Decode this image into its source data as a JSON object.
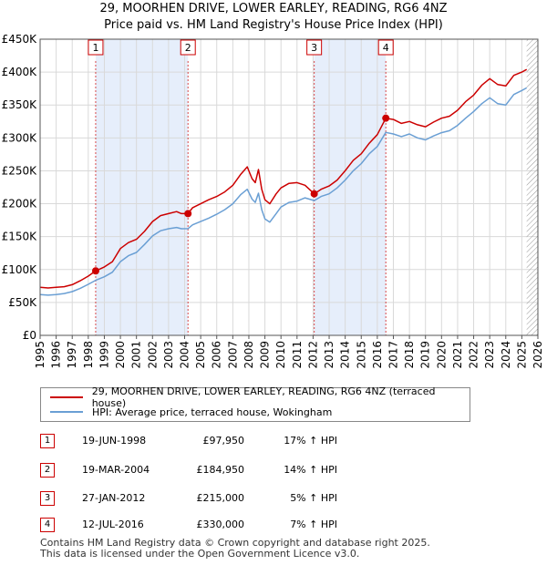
{
  "title_line1": "29, MOORHEN DRIVE, LOWER EARLEY, READING, RG6 4NZ",
  "title_line2": "Price paid vs. HM Land Registry's House Price Index (HPI)",
  "colors": {
    "price_line": "#cc0000",
    "hpi_line": "#6a9fd4",
    "shade": "#e6eefb",
    "grid": "#d9d9d9",
    "hatch": "#999999"
  },
  "chart_data": {
    "type": "line",
    "title": "29, MOORHEN DRIVE, LOWER EARLEY, READING, RG6 4NZ",
    "subtitle": "Price paid vs. HM Land Registry's House Price Index (HPI)",
    "xlim": [
      1995,
      2026
    ],
    "ylim": [
      0,
      450000
    ],
    "x_ticks": [
      "1995",
      "1996",
      "1997",
      "1998",
      "1999",
      "2000",
      "2001",
      "2002",
      "2003",
      "2004",
      "2005",
      "2006",
      "2007",
      "2008",
      "2009",
      "2010",
      "2011",
      "2012",
      "2013",
      "2014",
      "2015",
      "2016",
      "2017",
      "2018",
      "2019",
      "2020",
      "2021",
      "2022",
      "2023",
      "2024",
      "2025",
      "2026"
    ],
    "y_ticks": [
      {
        "value": 0,
        "label": "£0"
      },
      {
        "value": 50000,
        "label": "£50K"
      },
      {
        "value": 100000,
        "label": "£100K"
      },
      {
        "value": 150000,
        "label": "£150K"
      },
      {
        "value": 200000,
        "label": "£200K"
      },
      {
        "value": 250000,
        "label": "£250K"
      },
      {
        "value": 300000,
        "label": "£300K"
      },
      {
        "value": 350000,
        "label": "£350K"
      },
      {
        "value": 400000,
        "label": "£400K"
      },
      {
        "value": 450000,
        "label": "£450K"
      }
    ],
    "series": [
      {
        "name": "29, MOORHEN DRIVE, LOWER EARLEY, READING, RG6 4NZ (terraced house)",
        "color": "#cc0000",
        "points": [
          [
            1995.0,
            73000
          ],
          [
            1995.5,
            72000
          ],
          [
            1996.0,
            73000
          ],
          [
            1996.5,
            74000
          ],
          [
            1997.0,
            77000
          ],
          [
            1997.5,
            83000
          ],
          [
            1998.0,
            90000
          ],
          [
            1998.46,
            97950
          ],
          [
            1999.0,
            104000
          ],
          [
            1999.5,
            112000
          ],
          [
            2000.0,
            132000
          ],
          [
            2000.5,
            141000
          ],
          [
            2001.0,
            146000
          ],
          [
            2001.5,
            158000
          ],
          [
            2002.0,
            173000
          ],
          [
            2002.5,
            182000
          ],
          [
            2003.0,
            185000
          ],
          [
            2003.5,
            188000
          ],
          [
            2003.8,
            185000
          ],
          [
            2004.21,
            184950
          ],
          [
            2004.5,
            194000
          ],
          [
            2005.0,
            200000
          ],
          [
            2005.5,
            206000
          ],
          [
            2006.0,
            211000
          ],
          [
            2006.5,
            218000
          ],
          [
            2007.0,
            228000
          ],
          [
            2007.5,
            245000
          ],
          [
            2007.9,
            256000
          ],
          [
            2008.2,
            238000
          ],
          [
            2008.4,
            232000
          ],
          [
            2008.6,
            252000
          ],
          [
            2008.8,
            222000
          ],
          [
            2009.0,
            206000
          ],
          [
            2009.3,
            200000
          ],
          [
            2009.7,
            215000
          ],
          [
            2010.0,
            224000
          ],
          [
            2010.5,
            231000
          ],
          [
            2011.0,
            232000
          ],
          [
            2011.5,
            228000
          ],
          [
            2012.07,
            215000
          ],
          [
            2012.5,
            222000
          ],
          [
            2013.0,
            227000
          ],
          [
            2013.5,
            236000
          ],
          [
            2014.0,
            250000
          ],
          [
            2014.5,
            266000
          ],
          [
            2015.0,
            276000
          ],
          [
            2015.5,
            292000
          ],
          [
            2016.0,
            305000
          ],
          [
            2016.53,
            330000
          ],
          [
            2017.0,
            328000
          ],
          [
            2017.5,
            322000
          ],
          [
            2018.0,
            325000
          ],
          [
            2018.5,
            320000
          ],
          [
            2019.0,
            317000
          ],
          [
            2019.5,
            324000
          ],
          [
            2020.0,
            330000
          ],
          [
            2020.5,
            333000
          ],
          [
            2021.0,
            342000
          ],
          [
            2021.5,
            355000
          ],
          [
            2022.0,
            365000
          ],
          [
            2022.5,
            380000
          ],
          [
            2023.0,
            390000
          ],
          [
            2023.5,
            381000
          ],
          [
            2024.0,
            379000
          ],
          [
            2024.5,
            395000
          ],
          [
            2025.0,
            400000
          ],
          [
            2025.3,
            404000
          ]
        ]
      },
      {
        "name": "HPI: Average price, terraced house, Wokingham",
        "color": "#6a9fd4",
        "points": [
          [
            1995.0,
            62000
          ],
          [
            1995.5,
            61000
          ],
          [
            1996.0,
            62000
          ],
          [
            1996.5,
            63500
          ],
          [
            1997.0,
            66500
          ],
          [
            1997.5,
            71500
          ],
          [
            1998.0,
            77500
          ],
          [
            1998.46,
            83700
          ],
          [
            1999.0,
            89000
          ],
          [
            1999.5,
            96000
          ],
          [
            2000.0,
            112000
          ],
          [
            2000.5,
            121000
          ],
          [
            2001.0,
            126000
          ],
          [
            2001.5,
            138000
          ],
          [
            2002.0,
            151000
          ],
          [
            2002.5,
            159000
          ],
          [
            2003.0,
            162000
          ],
          [
            2003.5,
            164000
          ],
          [
            2003.8,
            162000
          ],
          [
            2004.21,
            162200
          ],
          [
            2004.5,
            168000
          ],
          [
            2005.0,
            173000
          ],
          [
            2005.5,
            178000
          ],
          [
            2006.0,
            184000
          ],
          [
            2006.5,
            191000
          ],
          [
            2007.0,
            200000
          ],
          [
            2007.5,
            214000
          ],
          [
            2007.9,
            222000
          ],
          [
            2008.2,
            207000
          ],
          [
            2008.4,
            202000
          ],
          [
            2008.6,
            216000
          ],
          [
            2008.8,
            191000
          ],
          [
            2009.0,
            177000
          ],
          [
            2009.3,
            172000
          ],
          [
            2009.7,
            185000
          ],
          [
            2010.0,
            195000
          ],
          [
            2010.5,
            202000
          ],
          [
            2011.0,
            204000
          ],
          [
            2011.5,
            209000
          ],
          [
            2012.07,
            204800
          ],
          [
            2012.5,
            211000
          ],
          [
            2013.0,
            215000
          ],
          [
            2013.5,
            224000
          ],
          [
            2014.0,
            236000
          ],
          [
            2014.5,
            250000
          ],
          [
            2015.0,
            261000
          ],
          [
            2015.5,
            276000
          ],
          [
            2016.0,
            287000
          ],
          [
            2016.53,
            308400
          ],
          [
            2017.0,
            306000
          ],
          [
            2017.5,
            302000
          ],
          [
            2018.0,
            306000
          ],
          [
            2018.5,
            300000
          ],
          [
            2019.0,
            297000
          ],
          [
            2019.5,
            303000
          ],
          [
            2020.0,
            308000
          ],
          [
            2020.5,
            311000
          ],
          [
            2021.0,
            319000
          ],
          [
            2021.5,
            330000
          ],
          [
            2022.0,
            340000
          ],
          [
            2022.5,
            352000
          ],
          [
            2023.0,
            361000
          ],
          [
            2023.5,
            352000
          ],
          [
            2024.0,
            350000
          ],
          [
            2024.5,
            366000
          ],
          [
            2025.0,
            372000
          ],
          [
            2025.3,
            376000
          ]
        ]
      }
    ],
    "sales": [
      {
        "id": "1",
        "x": 1998.46,
        "value": 97950
      },
      {
        "id": "2",
        "x": 2004.21,
        "value": 184950
      },
      {
        "id": "3",
        "x": 2012.07,
        "value": 215000
      },
      {
        "id": "4",
        "x": 2016.53,
        "value": 330000
      }
    ],
    "shaded_periods": [
      [
        1998.46,
        2004.21
      ],
      [
        2012.07,
        2016.53
      ]
    ],
    "forecast_hatch_from": 2025.3
  },
  "legend": {
    "price_label": "29, MOORHEN DRIVE, LOWER EARLEY, READING, RG6 4NZ (terraced house)",
    "hpi_label": "HPI: Average price, terraced house, Wokingham"
  },
  "transactions": [
    {
      "num": "1",
      "date": "19-JUN-1998",
      "price": "£97,950",
      "hpi": "17% ↑ HPI"
    },
    {
      "num": "2",
      "date": "19-MAR-2004",
      "price": "£184,950",
      "hpi": "14% ↑ HPI"
    },
    {
      "num": "3",
      "date": "27-JAN-2012",
      "price": "£215,000",
      "hpi": "5% ↑ HPI"
    },
    {
      "num": "4",
      "date": "12-JUL-2016",
      "price": "£330,000",
      "hpi": "7% ↑ HPI"
    }
  ],
  "footer": {
    "line1": "Contains HM Land Registry data © Crown copyright and database right 2025.",
    "line2": "This data is licensed under the Open Government Licence v3.0."
  }
}
